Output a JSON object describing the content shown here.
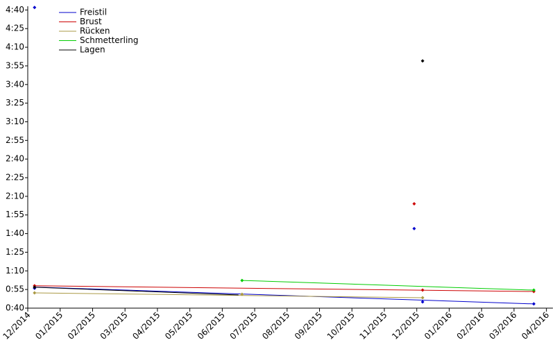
{
  "chart_data": {
    "type": "line",
    "xlim": [
      0,
      16.2
    ],
    "xticks": [
      {
        "value": 0,
        "label": "12/2014"
      },
      {
        "value": 1,
        "label": "01/2015"
      },
      {
        "value": 2,
        "label": "02/2015"
      },
      {
        "value": 3,
        "label": "03/2015"
      },
      {
        "value": 4,
        "label": "04/2015"
      },
      {
        "value": 5,
        "label": "05/2015"
      },
      {
        "value": 6,
        "label": "06/2015"
      },
      {
        "value": 7,
        "label": "07/2015"
      },
      {
        "value": 8,
        "label": "08/2015"
      },
      {
        "value": 9,
        "label": "09/2015"
      },
      {
        "value": 10,
        "label": "10/2015"
      },
      {
        "value": 11,
        "label": "11/2015"
      },
      {
        "value": 12,
        "label": "12/2015"
      },
      {
        "value": 13,
        "label": "01/2016"
      },
      {
        "value": 14,
        "label": "02/2016"
      },
      {
        "value": 15,
        "label": "03/2016"
      },
      {
        "value": 16,
        "label": "04/2016"
      }
    ],
    "ylim": [
      40,
      283
    ],
    "yticks": [
      {
        "value": 40,
        "label": "0:40"
      },
      {
        "value": 55,
        "label": "0:55"
      },
      {
        "value": 70,
        "label": "1:10"
      },
      {
        "value": 85,
        "label": "1:25"
      },
      {
        "value": 100,
        "label": "1:40"
      },
      {
        "value": 115,
        "label": "1:55"
      },
      {
        "value": 130,
        "label": "2:10"
      },
      {
        "value": 145,
        "label": "2:25"
      },
      {
        "value": 160,
        "label": "2:40"
      },
      {
        "value": 175,
        "label": "2:55"
      },
      {
        "value": 190,
        "label": "3:10"
      },
      {
        "value": 205,
        "label": "3:25"
      },
      {
        "value": 220,
        "label": "3:40"
      },
      {
        "value": 235,
        "label": "3:55"
      },
      {
        "value": 250,
        "label": "4:10"
      },
      {
        "value": 265,
        "label": "4:25"
      },
      {
        "value": 280,
        "label": "4:40"
      }
    ],
    "legend": "upper left",
    "series": [
      {
        "name": "Freistil",
        "color": "#0000cc",
        "x": [
          0.21,
          0.21,
          11.92,
          12.18,
          15.61
        ],
        "values": [
          282,
          56,
          104,
          45,
          43.4
        ],
        "trend_x": [
          0.21,
          15.61
        ],
        "trend": [
          57,
          43.4
        ]
      },
      {
        "name": "Brust",
        "color": "#cc0000",
        "x": [
          0.21,
          11.92,
          12.18,
          15.61
        ],
        "values": [
          58,
          124,
          54.5,
          53.4
        ],
        "trend_x": [
          0.21,
          15.61
        ],
        "trend": [
          58,
          53.4
        ]
      },
      {
        "name": "Rücken",
        "color": "#aa9944",
        "x": [
          0.21,
          6.61,
          12.18
        ],
        "values": [
          52.3,
          51.2,
          48.4
        ],
        "trend_x": [
          0.21,
          12.18
        ],
        "trend": [
          52.3,
          48.4
        ]
      },
      {
        "name": "Schmetterling",
        "color": "#00cc00",
        "x": [
          6.61,
          15.61
        ],
        "values": [
          62.3,
          54.5
        ],
        "trend_x": [
          6.61,
          15.61
        ],
        "trend": [
          62.3,
          54.5
        ]
      },
      {
        "name": "Lagen",
        "color": "#000000",
        "x": [
          0.21,
          12.18
        ],
        "values": [
          56.8,
          239
        ],
        "trend_x": [
          0.21,
          6.5
        ],
        "trend": [
          56.8,
          50.6
        ]
      }
    ]
  }
}
